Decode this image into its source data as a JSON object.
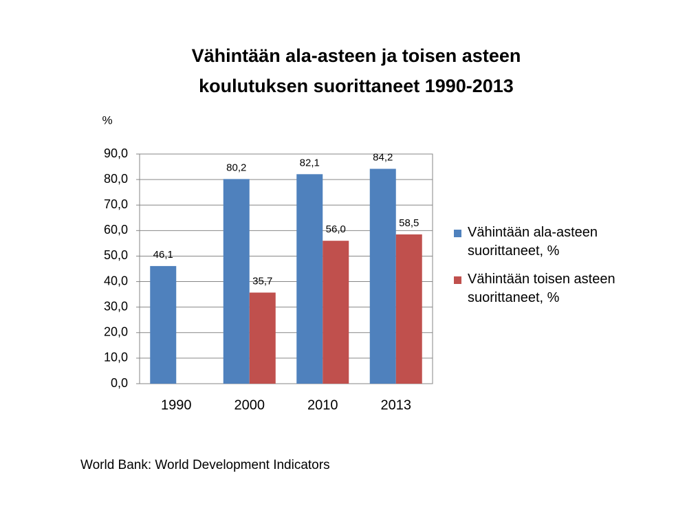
{
  "chart_data": {
    "type": "bar",
    "title": [
      "Vähintään ala-asteen ja toisen asteen",
      "koulutuksen suorittaneet 1990-2013"
    ],
    "y_label": "%",
    "categories": [
      "1990",
      "2000",
      "2010",
      "2013"
    ],
    "series": [
      {
        "name": "Vähintään ala-asteen suorittaneet, %",
        "color": "#4f81bd",
        "values": [
          46.1,
          80.2,
          82.1,
          84.2
        ],
        "value_labels": [
          "46,1",
          "80,2",
          "82,1",
          "84,2"
        ]
      },
      {
        "name": "Vähintään toisen asteen suorittaneet, %",
        "color": "#c0504d",
        "values": [
          null,
          35.7,
          56.0,
          58.5
        ],
        "value_labels": [
          null,
          "35,7",
          "56,0",
          "58,5"
        ]
      }
    ],
    "ylim": [
      0,
      90
    ],
    "yticks": [
      {
        "value": 0,
        "label": "0,0"
      },
      {
        "value": 10,
        "label": "10,0"
      },
      {
        "value": 20,
        "label": "20,0"
      },
      {
        "value": 30,
        "label": "30,0"
      },
      {
        "value": 40,
        "label": "40,0"
      },
      {
        "value": 50,
        "label": "50,0"
      },
      {
        "value": 60,
        "label": "60,0"
      },
      {
        "value": 70,
        "label": "70,0"
      },
      {
        "value": 80,
        "label": "80,0"
      },
      {
        "value": 90,
        "label": "90,0"
      }
    ],
    "grid": true,
    "legend": "right",
    "source": "World Bank: World Development Indicators"
  }
}
